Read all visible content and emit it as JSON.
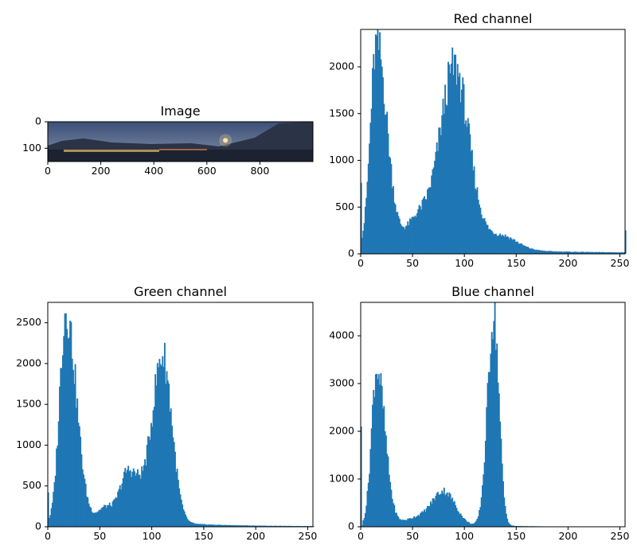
{
  "chart_data": [
    {
      "type": "image",
      "title": "Image",
      "xticks": [
        0,
        200,
        400,
        600,
        800
      ],
      "yticks": [
        0,
        100
      ],
      "xlim": [
        0,
        1000
      ],
      "ylim": [
        150,
        0
      ],
      "content": "night panorama: dark blue sky, mountains, lake with town lights, bright moon near x=670"
    },
    {
      "type": "histogram",
      "title": "Red channel",
      "bins": 256,
      "xlim": [
        0,
        255
      ],
      "ylim": [
        0,
        2400
      ],
      "xticks": [
        0,
        50,
        100,
        150,
        200,
        250
      ],
      "yticks": [
        0,
        500,
        1000,
        1500,
        2000
      ],
      "color": "#1f77b4",
      "peaks": [
        {
          "x": 15,
          "y": 2200
        },
        {
          "x": 90,
          "y": 1950
        }
      ],
      "notable_values": [
        {
          "x": 0,
          "y": 760
        },
        {
          "x": 255,
          "y": 250
        }
      ]
    },
    {
      "type": "histogram",
      "title": "Green channel",
      "bins": 256,
      "xlim": [
        0,
        255
      ],
      "ylim": [
        0,
        2750
      ],
      "xticks": [
        0,
        50,
        100,
        150,
        200,
        250
      ],
      "yticks": [
        0,
        500,
        1000,
        1500,
        2000,
        2500
      ],
      "color": "#1f77b4",
      "peaks": [
        {
          "x": 17,
          "y": 2620
        },
        {
          "x": 77,
          "y": 650
        },
        {
          "x": 110,
          "y": 2050
        }
      ],
      "notable_values": [
        {
          "x": 0,
          "y": 420
        }
      ]
    },
    {
      "type": "histogram",
      "title": "Blue channel",
      "bins": 256,
      "xlim": [
        0,
        255
      ],
      "ylim": [
        0,
        4700
      ],
      "xticks": [
        0,
        50,
        100,
        150,
        200,
        250
      ],
      "yticks": [
        0,
        1000,
        2000,
        3000,
        4000
      ],
      "color": "#1f77b4",
      "peaks": [
        {
          "x": 15,
          "y": 3300
        },
        {
          "x": 80,
          "y": 700
        },
        {
          "x": 128,
          "y": 4450
        }
      ],
      "notable_values": [
        {
          "x": 0,
          "y": 2100
        }
      ]
    }
  ]
}
